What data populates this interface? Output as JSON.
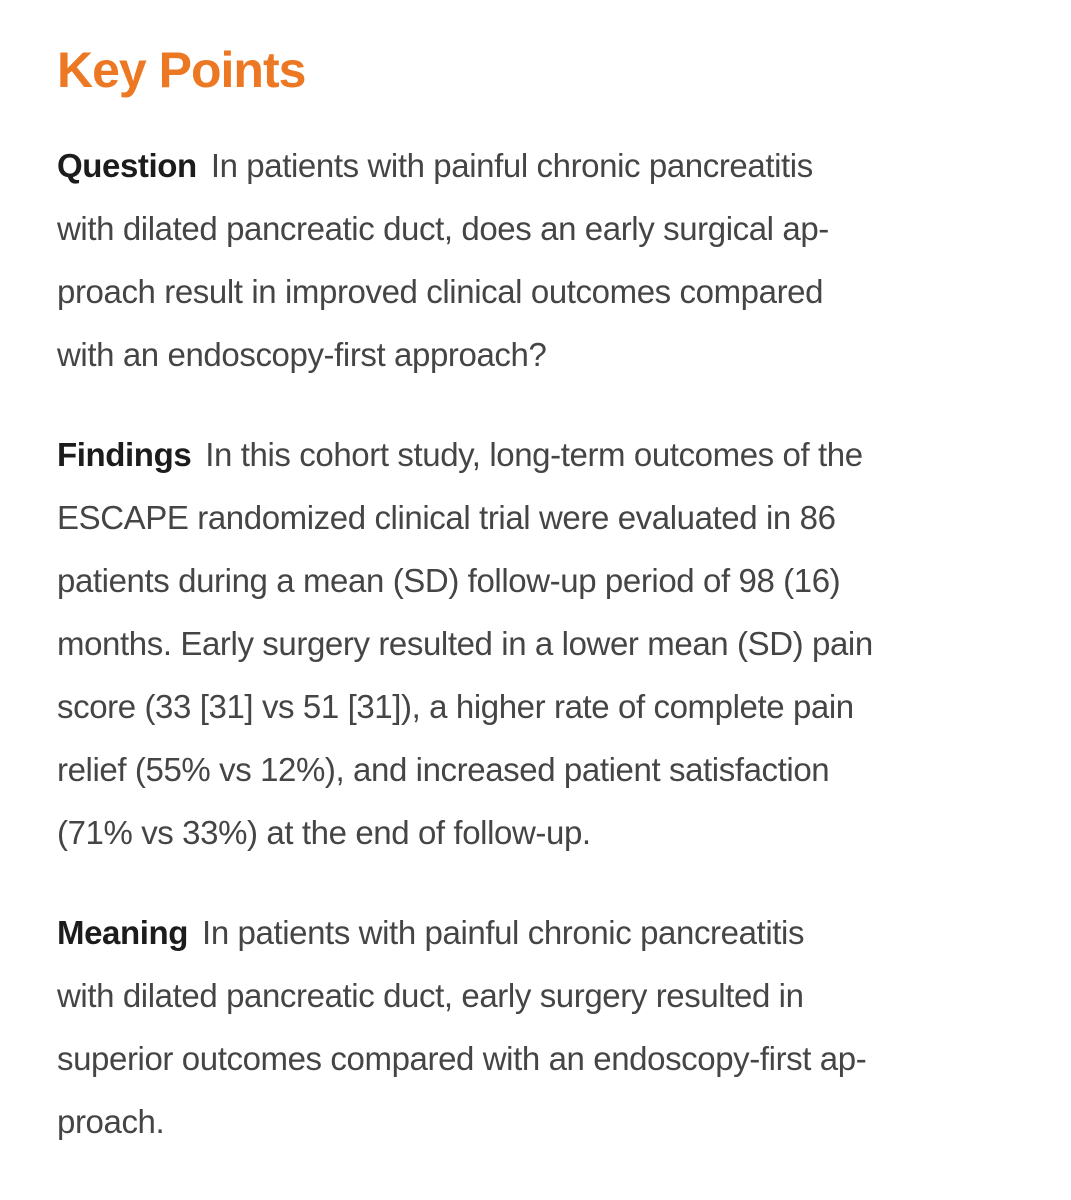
{
  "page": {
    "title": "Key Points",
    "accent_color": "#ED7823",
    "body_text_color": "#454545",
    "label_text_color": "#1c1c1c",
    "background_color": "#ffffff"
  },
  "sections": [
    {
      "label": "Question",
      "lines": [
        "In patients with painful chronic pancreatitis",
        "with dilated pancreatic duct, does an early surgical ap-",
        "proach result in improved clinical outcomes compared",
        "with an endoscopy-first approach?"
      ]
    },
    {
      "label": "Findings",
      "lines": [
        "In this cohort study, long-term outcomes of the",
        "ESCAPE randomized clinical trial were evaluated in 86",
        "patients during a mean (SD) follow-up period of 98 (16)",
        "months. Early surgery resulted in a lower mean (SD) pain",
        "score (33 [31] vs 51 [31]), a higher rate of complete pain",
        "relief (55% vs 12%), and increased patient satisfaction",
        "(71% vs 33%) at the end of follow-up."
      ]
    },
    {
      "label": "Meaning",
      "lines": [
        "In patients with painful chronic pancreatitis",
        "with dilated pancreatic duct, early surgery resulted in",
        "superior outcomes compared with an endoscopy-first ap-",
        "proach."
      ]
    }
  ]
}
